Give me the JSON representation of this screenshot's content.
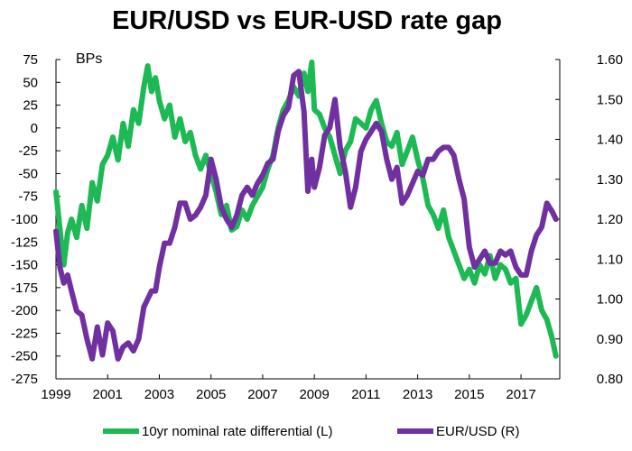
{
  "chart_data": {
    "type": "line",
    "title": "EUR/USD vs EUR-USD rate gap",
    "left_axis_unit": "BPs",
    "left_axis": {
      "ylim": [
        -275,
        75
      ],
      "ticks": [
        75,
        50,
        25,
        0,
        -25,
        -50,
        -75,
        -100,
        -125,
        -150,
        -175,
        -200,
        -225,
        -250,
        -275
      ],
      "tick_labels": [
        "75",
        "50",
        "25",
        "0",
        "-25",
        "-50",
        "-75",
        "-100",
        "-125",
        "-150",
        "-175",
        "-200",
        "-225",
        "-250",
        "-275"
      ]
    },
    "right_axis": {
      "ylim": [
        0.8,
        1.6
      ],
      "ticks": [
        1.6,
        1.5,
        1.4,
        1.3,
        1.2,
        1.1,
        1.0,
        0.9,
        0.8
      ],
      "tick_labels": [
        "1.60",
        "1.50",
        "1.40",
        "1.30",
        "1.20",
        "1.10",
        "1.00",
        "0.90",
        "0.80"
      ]
    },
    "x_axis": {
      "xlim": [
        1999.0,
        2018.5
      ],
      "ticks": [
        1999,
        2001,
        2003,
        2005,
        2007,
        2009,
        2011,
        2013,
        2015,
        2017
      ],
      "tick_labels": [
        "1999",
        "2001",
        "2003",
        "2005",
        "2007",
        "2009",
        "2011",
        "2013",
        "2015",
        "2017"
      ]
    },
    "grid": false,
    "legend_position": "bottom",
    "series": [
      {
        "name": "10yr nominal rate differential (L)",
        "axis": "left",
        "color": "#1db954",
        "x": [
          1999.0,
          1999.15,
          1999.3,
          1999.45,
          1999.6,
          1999.8,
          2000.0,
          2000.2,
          2000.4,
          2000.6,
          2000.8,
          2001.0,
          2001.2,
          2001.4,
          2001.6,
          2001.8,
          2002.0,
          2002.2,
          2002.4,
          2002.55,
          2002.7,
          2002.85,
          2003.0,
          2003.2,
          2003.4,
          2003.6,
          2003.8,
          2004.0,
          2004.2,
          2004.4,
          2004.6,
          2004.8,
          2005.0,
          2005.2,
          2005.4,
          2005.6,
          2005.8,
          2006.0,
          2006.2,
          2006.4,
          2006.6,
          2006.8,
          2007.0,
          2007.2,
          2007.4,
          2007.6,
          2007.8,
          2008.0,
          2008.2,
          2008.4,
          2008.6,
          2008.75,
          2008.9,
          2009.0,
          2009.2,
          2009.4,
          2009.6,
          2009.8,
          2010.0,
          2010.2,
          2010.4,
          2010.6,
          2010.8,
          2011.0,
          2011.2,
          2011.4,
          2011.6,
          2011.8,
          2012.0,
          2012.2,
          2012.4,
          2012.6,
          2012.8,
          2013.0,
          2013.2,
          2013.4,
          2013.6,
          2013.8,
          2014.0,
          2014.2,
          2014.4,
          2014.6,
          2014.8,
          2015.0,
          2015.2,
          2015.4,
          2015.6,
          2015.8,
          2016.0,
          2016.2,
          2016.4,
          2016.6,
          2016.8,
          2017.0,
          2017.2,
          2017.4,
          2017.6,
          2017.8,
          2018.0,
          2018.2,
          2018.35
        ],
        "values": [
          -70,
          -110,
          -150,
          -115,
          -100,
          -120,
          -85,
          -110,
          -60,
          -80,
          -40,
          -30,
          -10,
          -35,
          5,
          -20,
          20,
          5,
          45,
          68,
          40,
          55,
          30,
          10,
          25,
          -10,
          10,
          -15,
          -5,
          -30,
          -45,
          -30,
          -50,
          -70,
          -95,
          -85,
          -112,
          -108,
          -90,
          -100,
          -85,
          -75,
          -65,
          -45,
          -30,
          0,
          20,
          30,
          45,
          35,
          60,
          40,
          72,
          20,
          15,
          0,
          -10,
          -30,
          -50,
          -25,
          -15,
          10,
          5,
          0,
          20,
          30,
          5,
          -15,
          -20,
          -5,
          -40,
          -25,
          -10,
          -35,
          -55,
          -85,
          -95,
          -110,
          -90,
          -120,
          -135,
          -150,
          -165,
          -155,
          -170,
          -150,
          -160,
          -140,
          -165,
          -150,
          -155,
          -170,
          -165,
          -215,
          -205,
          -190,
          -175,
          -200,
          -210,
          -230,
          -250
        ]
      },
      {
        "name": "EUR/USD (R)",
        "axis": "right",
        "color": "#7030a0",
        "x": [
          1999.0,
          1999.15,
          1999.3,
          1999.45,
          1999.6,
          1999.8,
          2000.0,
          2000.2,
          2000.4,
          2000.6,
          2000.8,
          2001.0,
          2001.2,
          2001.4,
          2001.6,
          2001.8,
          2002.0,
          2002.2,
          2002.4,
          2002.55,
          2002.7,
          2002.85,
          2003.0,
          2003.2,
          2003.4,
          2003.6,
          2003.8,
          2004.0,
          2004.2,
          2004.4,
          2004.6,
          2004.8,
          2005.0,
          2005.2,
          2005.4,
          2005.6,
          2005.8,
          2006.0,
          2006.2,
          2006.4,
          2006.6,
          2006.8,
          2007.0,
          2007.2,
          2007.4,
          2007.6,
          2007.8,
          2008.0,
          2008.2,
          2008.4,
          2008.6,
          2008.75,
          2008.9,
          2009.0,
          2009.2,
          2009.4,
          2009.6,
          2009.8,
          2010.0,
          2010.2,
          2010.4,
          2010.6,
          2010.8,
          2011.0,
          2011.2,
          2011.4,
          2011.6,
          2011.8,
          2012.0,
          2012.2,
          2012.4,
          2012.6,
          2012.8,
          2013.0,
          2013.2,
          2013.4,
          2013.6,
          2013.8,
          2014.0,
          2014.2,
          2014.4,
          2014.6,
          2014.8,
          2015.0,
          2015.2,
          2015.4,
          2015.6,
          2015.8,
          2016.0,
          2016.2,
          2016.4,
          2016.6,
          2016.8,
          2017.0,
          2017.2,
          2017.4,
          2017.6,
          2017.8,
          2018.0,
          2018.2,
          2018.35
        ],
        "values": [
          1.17,
          1.08,
          1.04,
          1.06,
          1.02,
          0.97,
          0.96,
          0.9,
          0.85,
          0.93,
          0.86,
          0.94,
          0.92,
          0.85,
          0.88,
          0.89,
          0.87,
          0.9,
          0.98,
          1.0,
          1.02,
          1.02,
          1.08,
          1.14,
          1.14,
          1.18,
          1.24,
          1.24,
          1.2,
          1.21,
          1.23,
          1.26,
          1.35,
          1.3,
          1.23,
          1.2,
          1.18,
          1.21,
          1.26,
          1.28,
          1.26,
          1.29,
          1.31,
          1.34,
          1.35,
          1.42,
          1.46,
          1.48,
          1.56,
          1.57,
          1.47,
          1.27,
          1.35,
          1.28,
          1.33,
          1.41,
          1.43,
          1.5,
          1.38,
          1.32,
          1.23,
          1.28,
          1.37,
          1.4,
          1.42,
          1.44,
          1.42,
          1.35,
          1.3,
          1.33,
          1.24,
          1.26,
          1.29,
          1.32,
          1.31,
          1.35,
          1.35,
          1.37,
          1.38,
          1.38,
          1.36,
          1.3,
          1.25,
          1.13,
          1.08,
          1.1,
          1.12,
          1.09,
          1.09,
          1.12,
          1.11,
          1.12,
          1.08,
          1.06,
          1.06,
          1.12,
          1.16,
          1.18,
          1.24,
          1.22,
          1.2
        ]
      }
    ]
  }
}
